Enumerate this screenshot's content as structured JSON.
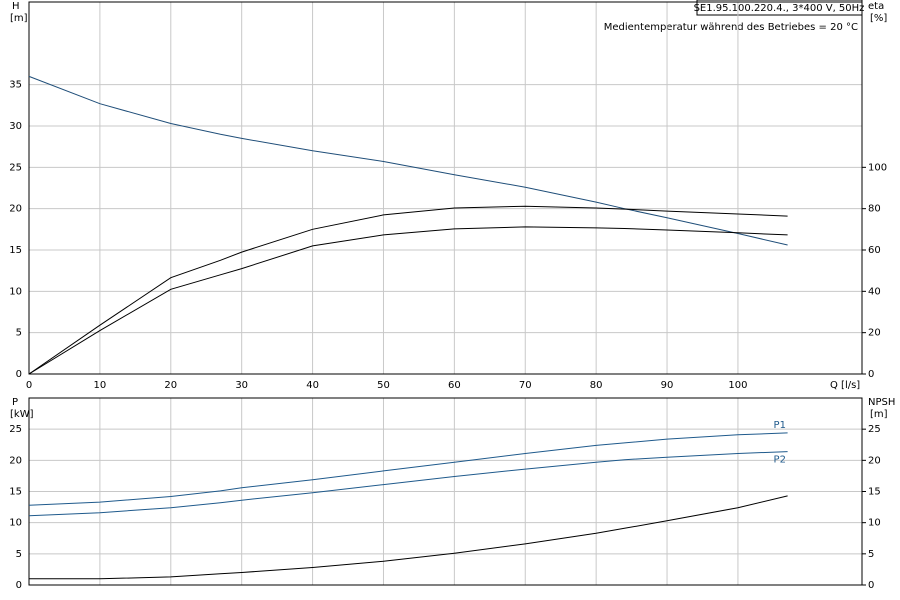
{
  "header": {
    "title": "SE1.95.100.220.4., 3*400 V, 50Hz",
    "subtitle": "Medientemperatur während des Betriebes = 20 °C"
  },
  "chart_data": [
    {
      "type": "line",
      "xlabel": "Q [l/s]",
      "ylabel": "H",
      "yunit": "[m]",
      "y2label": "eta",
      "y2unit": "[%]",
      "x": [
        0,
        10,
        20,
        27,
        30,
        40,
        50,
        60,
        70,
        80,
        84,
        90,
        100,
        107
      ],
      "xlim": [
        0,
        117.5
      ],
      "xticks": [
        0,
        10,
        20,
        30,
        40,
        50,
        60,
        70,
        80,
        90,
        100
      ],
      "x_tick_labels": true,
      "ylim": [
        0,
        45
      ],
      "yticks": [
        0,
        5,
        10,
        15,
        20,
        25,
        30,
        35
      ],
      "y2lim": [
        0,
        180
      ],
      "y2ticks": [
        0,
        20,
        40,
        60,
        80,
        100
      ],
      "grid": true,
      "series": [
        {
          "color": "#1f4e79",
          "values": [
            36,
            32.7,
            30.3,
            29,
            28.5,
            27,
            25.7,
            24.1,
            22.6,
            20.8,
            20,
            18.9,
            17,
            15.6
          ]
        },
        {
          "color": "#000000",
          "axis": "y2",
          "values": [
            0,
            23.6,
            46.6,
            55,
            59,
            70,
            77,
            80.3,
            81.2,
            80.3,
            79.8,
            78.8,
            77.4,
            76.4
          ]
        },
        {
          "color": "#000000",
          "axis": "y2",
          "values": [
            0,
            21,
            41,
            48,
            51,
            62,
            67.3,
            70.2,
            71.2,
            70.7,
            70.4,
            69.7,
            68.3,
            67.3
          ]
        }
      ]
    },
    {
      "type": "line",
      "ylabel": "P",
      "yunit": "[kW]",
      "y2label": "NPSH",
      "y2unit": "[m]",
      "x": [
        0,
        10,
        20,
        27,
        30,
        40,
        50,
        60,
        70,
        80,
        84,
        90,
        100,
        107
      ],
      "xlim": [
        0,
        117.5
      ],
      "xticks": [
        0,
        10,
        20,
        30,
        40,
        50,
        60,
        70,
        80,
        90,
        100
      ],
      "x_tick_labels": false,
      "ylim": [
        0,
        30
      ],
      "yticks": [
        0,
        5,
        10,
        15,
        20,
        25
      ],
      "y2lim": [
        0,
        30
      ],
      "y2ticks": [
        0,
        5,
        10,
        15,
        20,
        25
      ],
      "grid": true,
      "series": [
        {
          "name": "P1",
          "color": "#1f5a8c",
          "values": [
            12.8,
            13.3,
            14.2,
            15.1,
            15.6,
            16.9,
            18.3,
            19.7,
            21.1,
            22.4,
            22.8,
            23.4,
            24.1,
            24.4
          ]
        },
        {
          "name": "P2",
          "color": "#1f5a8c",
          "values": [
            11.1,
            11.6,
            12.4,
            13.2,
            13.6,
            14.8,
            16.1,
            17.4,
            18.6,
            19.7,
            20.1,
            20.5,
            21.1,
            21.4
          ]
        },
        {
          "color": "#000000",
          "axis": "y2",
          "values": [
            1.0,
            1.0,
            1.3,
            1.8,
            2.0,
            2.8,
            3.8,
            5.1,
            6.6,
            8.3,
            9.1,
            10.3,
            12.4,
            14.3
          ]
        }
      ]
    }
  ]
}
